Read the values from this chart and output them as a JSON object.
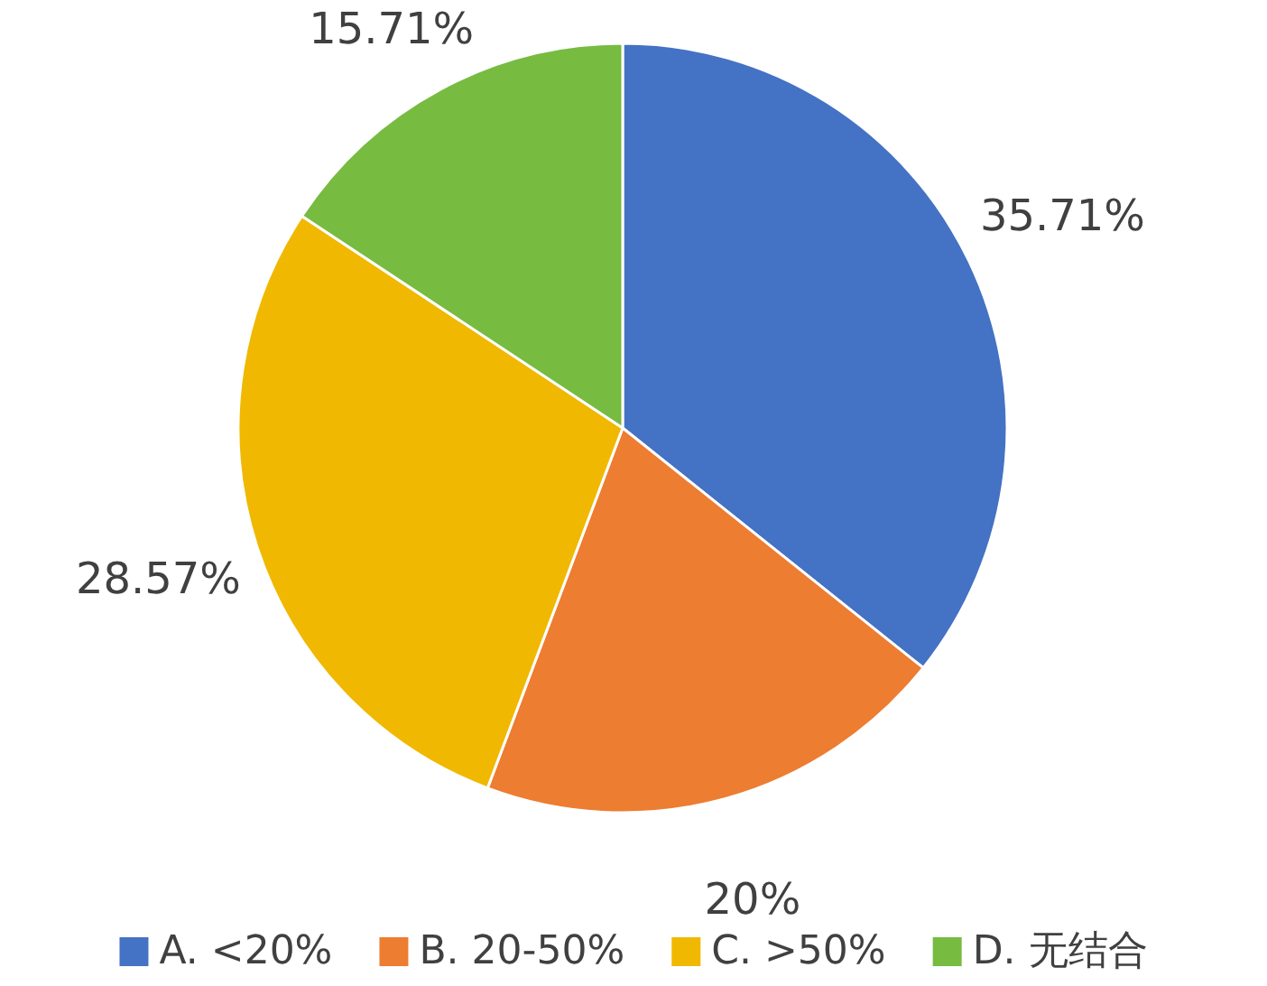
{
  "chart_data": {
    "type": "pie",
    "categories": [
      "A. <20%",
      "B. 20-50%",
      "C. >50%",
      "D. 无结合"
    ],
    "values": [
      35.71,
      20,
      28.57,
      15.71
    ],
    "colors": [
      "#4472c4",
      "#ed7d31",
      "#f0b800",
      "#77bb41"
    ],
    "value_labels": [
      "35.71%",
      "20%",
      "28.57%",
      "15.71%"
    ],
    "legend": "bottom"
  }
}
